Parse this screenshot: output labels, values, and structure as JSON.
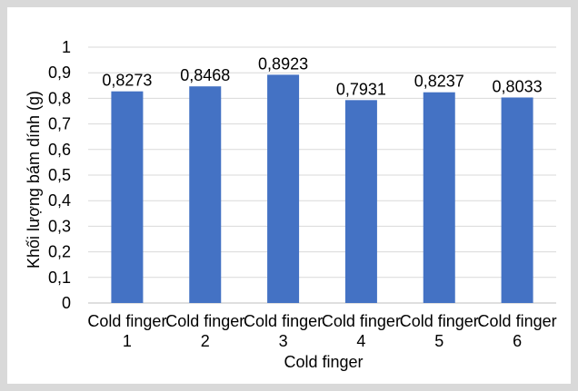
{
  "chart_data": {
    "type": "bar",
    "categories": [
      "Cold finger\n1",
      "Cold finger\n2",
      "Cold finger\n3",
      "Cold finger\n4",
      "Cold finger\n5",
      "Cold finger\n6"
    ],
    "values": [
      0.8273,
      0.8468,
      0.8923,
      0.7931,
      0.8237,
      0.8033
    ],
    "data_labels": [
      "0,8273",
      "0,8468",
      "0,8923",
      "0,7931",
      "0,8237",
      "0,8033"
    ],
    "y_tick_labels": [
      "0",
      "0,1",
      "0,2",
      "0,3",
      "0,4",
      "0,5",
      "0,6",
      "0,7",
      "0,8",
      "0,9",
      "1"
    ],
    "ylim": [
      0,
      1
    ],
    "xlabel": "Cold finger",
    "ylabel": "Khối lượng bám dính (g)",
    "title": "",
    "grid": true,
    "bar_color": "#4472c4",
    "grid_color": "#d9d9d9",
    "frame_color": "#d9d9d9"
  }
}
